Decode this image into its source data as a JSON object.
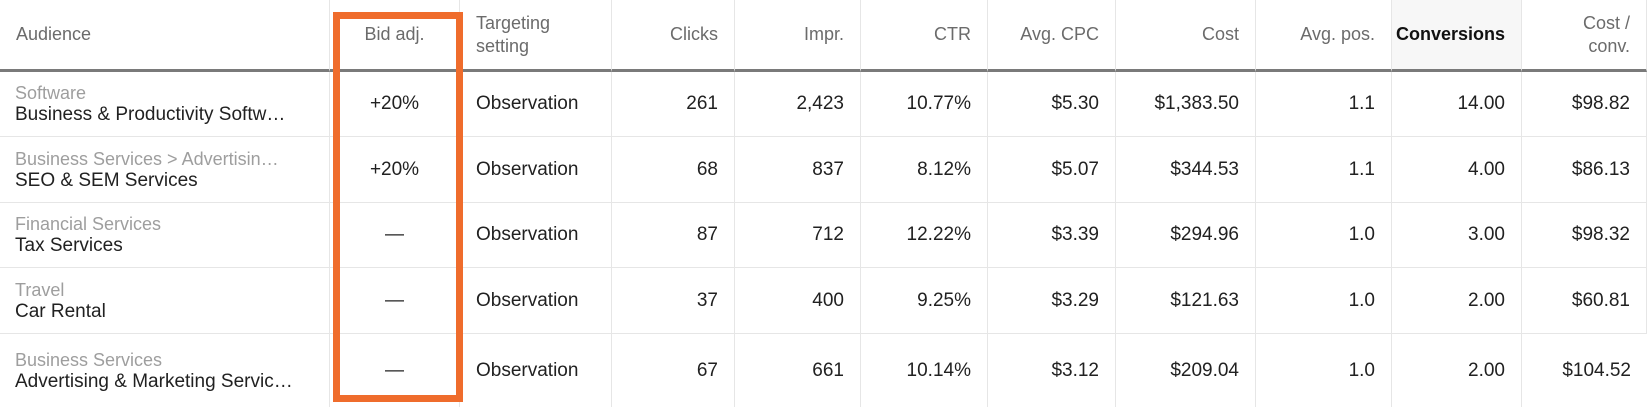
{
  "table": {
    "headers": [
      {
        "key": "audience",
        "label": "Audience",
        "align": "left"
      },
      {
        "key": "bid_adj",
        "label": "Bid adj.",
        "align": "center"
      },
      {
        "key": "targeting",
        "label": "Targeting setting",
        "align": "left"
      },
      {
        "key": "clicks",
        "label": "Clicks",
        "align": "right"
      },
      {
        "key": "impr",
        "label": "Impr.",
        "align": "right"
      },
      {
        "key": "ctr",
        "label": "CTR",
        "align": "right"
      },
      {
        "key": "avg_cpc",
        "label": "Avg. CPC",
        "align": "right"
      },
      {
        "key": "cost",
        "label": "Cost",
        "align": "right"
      },
      {
        "key": "avg_pos",
        "label": "Avg. pos.",
        "align": "right"
      },
      {
        "key": "conversions",
        "label": "Conversions",
        "align": "right"
      },
      {
        "key": "cost_conv",
        "label": "Cost / conv.",
        "align": "right"
      }
    ],
    "rows": [
      {
        "category": "Software",
        "name": "Business & Productivity Softw…",
        "bid_adj": "+20%",
        "targeting": "Observation",
        "clicks": "261",
        "impr": "2,423",
        "ctr": "10.77%",
        "avg_cpc": "$5.30",
        "cost": "$1,383.50",
        "avg_pos": "1.1",
        "conversions": "14.00",
        "cost_conv": "$98.82"
      },
      {
        "category": "Business Services > Advertisin…",
        "name": "SEO & SEM Services",
        "bid_adj": "+20%",
        "targeting": "Observation",
        "clicks": "68",
        "impr": "837",
        "ctr": "8.12%",
        "avg_cpc": "$5.07",
        "cost": "$344.53",
        "avg_pos": "1.1",
        "conversions": "4.00",
        "cost_conv": "$86.13"
      },
      {
        "category": "Financial Services",
        "name": "Tax Services",
        "bid_adj": "—",
        "targeting": "Observation",
        "clicks": "87",
        "impr": "712",
        "ctr": "12.22%",
        "avg_cpc": "$3.39",
        "cost": "$294.96",
        "avg_pos": "1.0",
        "conversions": "3.00",
        "cost_conv": "$98.32"
      },
      {
        "category": "Travel",
        "name": "Car Rental",
        "bid_adj": "—",
        "targeting": "Observation",
        "clicks": "37",
        "impr": "400",
        "ctr": "9.25%",
        "avg_cpc": "$3.29",
        "cost": "$121.63",
        "avg_pos": "1.0",
        "conversions": "2.00",
        "cost_conv": "$60.81"
      },
      {
        "category": "Business Services",
        "name": "Advertising & Marketing Servic…",
        "bid_adj": "—",
        "targeting": "Observation",
        "clicks": "67",
        "impr": "661",
        "ctr": "10.14%",
        "avg_cpc": "$3.12",
        "cost": "$209.04",
        "avg_pos": "1.0",
        "conversions": "2.00",
        "cost_conv": "$104.52"
      }
    ]
  },
  "highlight_color": "#ef6c2c"
}
